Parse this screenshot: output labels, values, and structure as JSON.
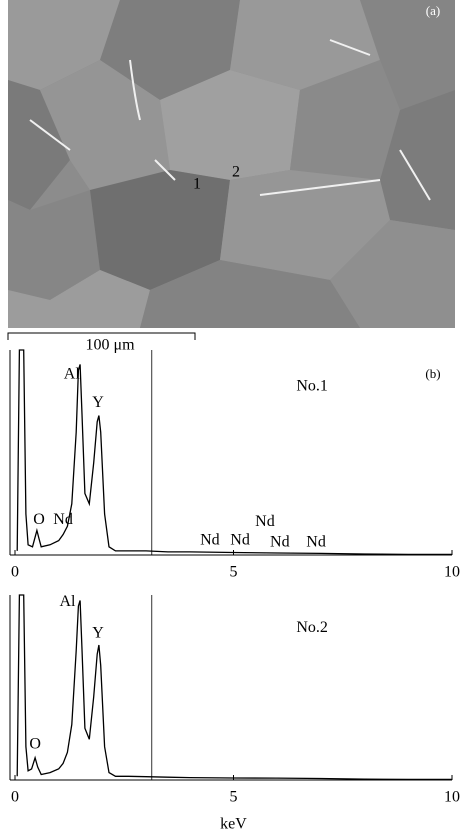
{
  "panel_a": {
    "label": "(a)",
    "markers": [
      "1",
      "2"
    ],
    "scale_bar": "100 μm"
  },
  "chart_data": [
    {
      "type": "line",
      "label": "(b)",
      "title": "No.1",
      "x": [
        0.05,
        0.1,
        0.2,
        0.25,
        0.3,
        0.4,
        0.5,
        0.55,
        0.6,
        0.8,
        1.0,
        1.1,
        1.2,
        1.3,
        1.4,
        1.45,
        1.49,
        1.53,
        1.6,
        1.7,
        1.8,
        1.88,
        1.92,
        1.96,
        2.05,
        2.15,
        2.3,
        2.6,
        3,
        3.5,
        4,
        5,
        6,
        7,
        8,
        9,
        10
      ],
      "values": [
        2,
        100,
        100,
        20,
        5,
        4,
        12,
        8,
        4,
        5,
        7,
        10,
        14,
        25,
        60,
        90,
        93,
        70,
        30,
        25,
        45,
        65,
        68,
        60,
        20,
        4,
        2,
        2,
        2,
        1.5,
        1.5,
        1.2,
        1,
        0.8,
        0.5,
        0.3,
        0.3
      ],
      "color": "#000000",
      "cursor": 3.13,
      "xlim": [
        0,
        10
      ],
      "xticks": [
        0,
        5,
        10
      ],
      "ylim": [
        0,
        100
      ],
      "annotations": [
        {
          "text": "Al",
          "x": 1.3,
          "y": 88
        },
        {
          "text": "Y",
          "x": 1.9,
          "y": 74
        },
        {
          "text": "O",
          "x": 0.55,
          "y": 17
        },
        {
          "text": "Nd",
          "x": 1.1,
          "y": 17
        },
        {
          "text": "Nd",
          "x": 4.46,
          "y": 7
        },
        {
          "text": "Nd",
          "x": 5.15,
          "y": 7
        },
        {
          "text": "Nd",
          "x": 5.72,
          "y": 16
        },
        {
          "text": "Nd",
          "x": 6.06,
          "y": 6
        },
        {
          "text": "Nd",
          "x": 6.89,
          "y": 6
        }
      ]
    },
    {
      "type": "line",
      "title": "No.2",
      "xlabel": "keV",
      "x": [
        0.05,
        0.1,
        0.2,
        0.25,
        0.3,
        0.38,
        0.46,
        0.52,
        0.6,
        0.8,
        1.0,
        1.1,
        1.2,
        1.3,
        1.4,
        1.45,
        1.49,
        1.53,
        1.6,
        1.7,
        1.8,
        1.88,
        1.92,
        1.96,
        2.05,
        2.15,
        2.3,
        2.6,
        3,
        3.5,
        4,
        5,
        6,
        7,
        8,
        9,
        10
      ],
      "values": [
        2,
        100,
        100,
        18,
        5,
        6,
        12,
        7,
        3,
        4,
        6,
        9,
        15,
        30,
        70,
        94,
        97,
        72,
        28,
        22,
        45,
        68,
        73,
        62,
        18,
        4,
        2,
        2,
        1.8,
        1.5,
        1.3,
        1.1,
        1,
        0.8,
        0.5,
        0.3,
        0.3
      ],
      "color": "#000000",
      "cursor": 3.13,
      "xlim": [
        0,
        10
      ],
      "xticks": [
        0,
        5,
        10
      ],
      "ylim": [
        0,
        100
      ],
      "annotations": [
        {
          "text": "Al",
          "x": 1.2,
          "y": 96
        },
        {
          "text": "Y",
          "x": 1.9,
          "y": 79
        },
        {
          "text": "O",
          "x": 0.46,
          "y": 19
        }
      ]
    }
  ]
}
